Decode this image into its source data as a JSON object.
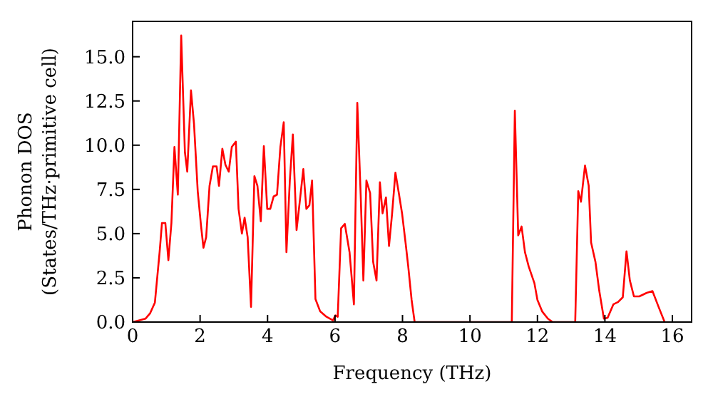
{
  "chart_data": {
    "type": "line",
    "xlabel": "Frequency (THz)",
    "ylabel": "Phonon DOS\n(States/THz·primitive cell)",
    "series": [
      {
        "color": "#ff0000",
        "x": [
          0,
          0.38,
          0.52,
          0.66,
          0.8,
          0.87,
          0.97,
          1.06,
          1.15,
          1.24,
          1.34,
          1.44,
          1.55,
          1.62,
          1.73,
          1.82,
          1.93,
          2.03,
          2.1,
          2.18,
          2.28,
          2.38,
          2.49,
          2.56,
          2.66,
          2.75,
          2.85,
          2.94,
          3.06,
          3.14,
          3.24,
          3.32,
          3.41,
          3.51,
          3.61,
          3.7,
          3.8,
          3.89,
          3.99,
          4.08,
          4.18,
          4.28,
          4.38,
          4.48,
          4.56,
          4.66,
          4.75,
          4.86,
          4.96,
          5.06,
          5.15,
          5.24,
          5.32,
          5.42,
          5.56,
          5.73,
          5.94,
          6.01,
          6.08,
          6.18,
          6.29,
          6.43,
          6.56,
          6.66,
          6.76,
          6.84,
          6.93,
          7.04,
          7.13,
          7.23,
          7.33,
          7.41,
          7.51,
          7.6,
          7.69,
          7.79,
          7.89,
          7.99,
          8.09,
          8.17,
          8.27,
          8.36,
          11.24,
          11.33,
          11.43,
          11.53,
          11.63,
          11.74,
          11.91,
          12.0,
          12.14,
          12.31,
          12.45,
          13.12,
          13.21,
          13.29,
          13.41,
          13.52,
          13.59,
          13.72,
          13.83,
          13.97,
          14.08,
          14.25,
          14.39,
          14.53,
          14.64,
          14.74,
          14.86,
          15.02,
          15.24,
          15.41,
          15.59,
          15.77
        ],
        "values": [
          0,
          0.19,
          0.5,
          1.1,
          3.95,
          5.6,
          5.6,
          3.5,
          5.6,
          9.9,
          7.2,
          16.2,
          9.6,
          8.5,
          13.1,
          11.2,
          7.4,
          5.4,
          4.2,
          4.8,
          7.7,
          8.8,
          8.8,
          7.7,
          9.8,
          8.9,
          8.5,
          9.9,
          10.2,
          6.4,
          5.0,
          5.9,
          4.8,
          0.86,
          8.25,
          7.7,
          5.7,
          9.95,
          6.4,
          6.4,
          7.1,
          7.2,
          9.9,
          11.3,
          3.95,
          8.0,
          10.6,
          5.2,
          6.9,
          8.65,
          6.4,
          6.6,
          8.0,
          1.3,
          0.6,
          0.32,
          0.1,
          0.38,
          0.3,
          5.3,
          5.55,
          3.95,
          1.0,
          12.4,
          7.2,
          2.35,
          8.0,
          7.3,
          3.4,
          2.35,
          7.9,
          6.15,
          7.05,
          4.3,
          6.1,
          8.45,
          7.3,
          6.1,
          4.5,
          3.15,
          1.25,
          0,
          0,
          11.95,
          4.9,
          5.4,
          3.95,
          3.15,
          2.2,
          1.25,
          0.6,
          0.19,
          0,
          0,
          7.4,
          6.8,
          8.85,
          7.7,
          4.5,
          3.4,
          1.8,
          0.19,
          0.24,
          1.0,
          1.13,
          1.4,
          4.0,
          2.35,
          1.45,
          1.45,
          1.65,
          1.75,
          0.86,
          0
        ]
      }
    ],
    "xlim": [
      0,
      16.57
    ],
    "xticks": [
      0,
      2,
      4,
      6,
      8,
      10,
      12,
      14,
      16
    ],
    "ylim": [
      0,
      17
    ],
    "yticks": [
      {
        "value": 0,
        "label": "0.0"
      },
      {
        "value": 2.5,
        "label": "2.5"
      },
      {
        "value": 5,
        "label": "5.0"
      },
      {
        "value": 7.5,
        "label": "7.5"
      },
      {
        "value": 10,
        "label": "10.0"
      },
      {
        "value": 12.5,
        "label": "12.5"
      },
      {
        "value": 15,
        "label": "15.0"
      }
    ],
    "grid": false,
    "legend": false,
    "marker": "none",
    "line_style": "solid"
  }
}
